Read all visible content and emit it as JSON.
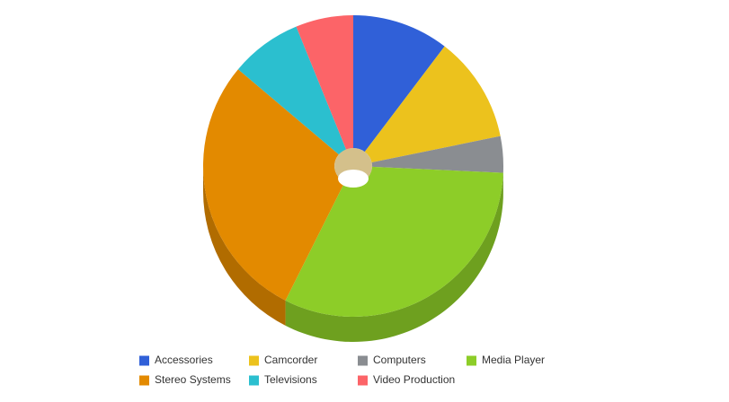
{
  "chart_data": {
    "type": "pie",
    "categories": [
      "Accessories",
      "Camcorder",
      "Computers",
      "Media Player",
      "Stereo Systems",
      "Televisions",
      "Video Production"
    ],
    "values": [
      10.4,
      11.4,
      3.9,
      31.7,
      28.6,
      7.7,
      6.2
    ],
    "colors": [
      "#3060d8",
      "#ecc21d",
      "#8a8d91",
      "#8dcd28",
      "#e38a00",
      "#2bbfcf",
      "#fc6468"
    ],
    "legend": "bottom"
  }
}
